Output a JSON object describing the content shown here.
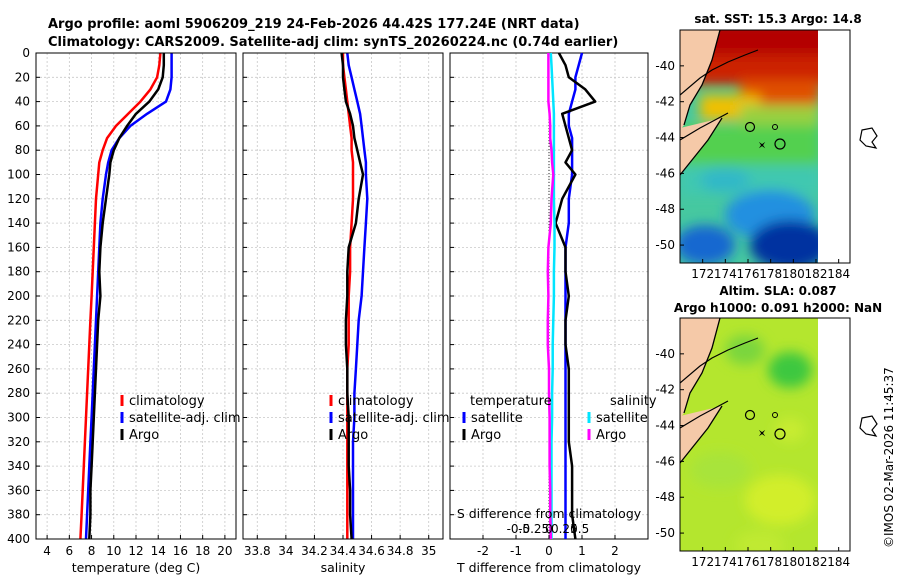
{
  "header": {
    "line1": "Argo profile: aoml 5906209_219 24-Feb-2026 44.42S 177.24E (NRT data)",
    "line2": "Climatology: CARS2009. Satellite-adj clim: synTS_20260224.nc (0.74d earlier)"
  },
  "credit": "©IMOS 02-Mar-2026 11:45:37",
  "colors": {
    "climatology": "#ff0000",
    "satellite": "#0000ff",
    "argo": "#000000",
    "cyan": "#00e5ff",
    "magenta": "#ff00ff"
  },
  "chart_data": [
    {
      "type": "line",
      "id": "temperature",
      "xlabel": "temperature (deg C)",
      "ylim": [
        0,
        400
      ],
      "xlim": [
        3,
        21
      ],
      "xticks": [
        4,
        6,
        8,
        10,
        12,
        14,
        16,
        18,
        20
      ],
      "yticks": [
        0,
        20,
        40,
        60,
        80,
        100,
        120,
        140,
        160,
        180,
        200,
        220,
        240,
        260,
        280,
        300,
        320,
        340,
        360,
        380,
        400
      ],
      "legend": [
        "climatology",
        "satellite-adj. clim",
        "Argo"
      ],
      "series": [
        {
          "name": "climatology",
          "color": "#ff0000",
          "x": [
            14.2,
            14.1,
            13.9,
            13.3,
            12.4,
            11.3,
            10.2,
            9.4,
            9.0,
            8.7,
            8.6,
            8.4,
            8.3,
            8.2,
            8.1,
            8.0,
            7.9,
            7.8,
            7.7,
            7.6,
            7.5,
            7.4,
            7.3,
            7.2,
            7.1,
            7.0
          ],
          "y": [
            0,
            10,
            20,
            30,
            40,
            50,
            60,
            70,
            80,
            90,
            100,
            120,
            140,
            160,
            180,
            200,
            220,
            240,
            260,
            280,
            300,
            320,
            340,
            360,
            380,
            400
          ]
        },
        {
          "name": "satellite-adj. clim",
          "color": "#0000ff",
          "x": [
            15.2,
            15.2,
            15.2,
            15.1,
            14.7,
            13.0,
            11.5,
            10.5,
            9.8,
            9.5,
            9.3,
            9.0,
            8.8,
            8.7,
            8.6,
            8.5,
            8.4,
            8.3,
            8.2,
            8.1,
            8.0,
            7.9,
            7.8,
            7.7,
            7.6,
            7.5
          ],
          "y": [
            0,
            10,
            20,
            30,
            40,
            50,
            60,
            70,
            80,
            90,
            100,
            120,
            140,
            160,
            180,
            200,
            220,
            240,
            260,
            280,
            300,
            320,
            340,
            360,
            380,
            400
          ]
        },
        {
          "name": "Argo",
          "color": "#000000",
          "x": [
            14.5,
            14.5,
            14.4,
            14.0,
            13.2,
            12.0,
            11.2,
            10.5,
            10.0,
            9.7,
            9.6,
            9.3,
            9.0,
            8.8,
            8.7,
            8.8,
            8.6,
            8.5,
            8.4,
            8.3,
            8.2,
            8.1,
            8.0,
            7.9,
            7.9,
            7.8
          ],
          "y": [
            0,
            10,
            20,
            30,
            40,
            50,
            60,
            70,
            80,
            90,
            100,
            120,
            140,
            160,
            180,
            200,
            220,
            240,
            260,
            280,
            300,
            320,
            340,
            360,
            380,
            400
          ]
        }
      ]
    },
    {
      "type": "line",
      "id": "salinity",
      "xlabel": "salinity",
      "ylim": [
        0,
        400
      ],
      "xlim": [
        33.7,
        35.1
      ],
      "xticks": [
        33.8,
        34,
        34.2,
        34.4,
        34.6,
        34.8,
        35
      ],
      "xticklabels": [
        "33.8",
        "34",
        "34.2",
        "34.4",
        "34.6",
        "34.8",
        "35"
      ],
      "legend": [
        "climatology",
        "satellite-adj. clim",
        "Argo"
      ],
      "series": [
        {
          "name": "climatology",
          "color": "#ff0000",
          "x": [
            34.4,
            34.4,
            34.41,
            34.42,
            34.43,
            34.44,
            34.45,
            34.46,
            34.46,
            34.47,
            34.47,
            34.47,
            34.46,
            34.45,
            34.45,
            34.44,
            34.44,
            34.44,
            34.43,
            34.43,
            34.43,
            34.43,
            34.43,
            34.43,
            34.43,
            34.43
          ],
          "y": [
            0,
            10,
            20,
            30,
            40,
            50,
            60,
            70,
            80,
            90,
            100,
            120,
            140,
            160,
            180,
            200,
            220,
            240,
            260,
            280,
            300,
            320,
            340,
            360,
            380,
            400
          ]
        },
        {
          "name": "satellite-adj. clim",
          "color": "#0000ff",
          "x": [
            34.43,
            34.44,
            34.46,
            34.48,
            34.5,
            34.52,
            34.53,
            34.54,
            34.55,
            34.56,
            34.56,
            34.57,
            34.56,
            34.55,
            34.54,
            34.53,
            34.51,
            34.5,
            34.49,
            34.48,
            34.48,
            34.47,
            34.47,
            34.47,
            34.47,
            34.47
          ],
          "y": [
            0,
            10,
            20,
            30,
            40,
            50,
            60,
            70,
            80,
            90,
            100,
            120,
            140,
            160,
            180,
            200,
            220,
            240,
            260,
            280,
            300,
            320,
            340,
            360,
            380,
            400
          ]
        },
        {
          "name": "Argo",
          "color": "#000000",
          "x": [
            34.39,
            34.4,
            34.4,
            34.41,
            34.42,
            34.45,
            34.47,
            34.48,
            34.5,
            34.52,
            34.54,
            34.51,
            34.49,
            34.44,
            34.43,
            34.43,
            34.42,
            34.42,
            34.43,
            34.43,
            34.44,
            34.44,
            34.44,
            34.45,
            34.45,
            34.46
          ],
          "y": [
            0,
            10,
            20,
            30,
            40,
            50,
            60,
            70,
            80,
            90,
            100,
            120,
            140,
            160,
            180,
            200,
            220,
            240,
            260,
            280,
            300,
            320,
            340,
            360,
            380,
            400
          ]
        }
      ]
    },
    {
      "type": "line",
      "id": "difference",
      "xlabel": "T difference from climatology",
      "xlabel_top": "S difference from climatology",
      "ylim": [
        0,
        400
      ],
      "xlim": [
        -3,
        3
      ],
      "xticks": [
        -2,
        -1,
        0,
        1,
        2
      ],
      "xticklabels": [
        "-2",
        "-1",
        "0",
        "1",
        "2"
      ],
      "sticks": [
        -0.5,
        -0.25,
        0,
        0.25,
        0.5
      ],
      "sticklabels": [
        "-0.5",
        "-0.25",
        "0",
        "0.25",
        "0.5"
      ],
      "legend_temperature_title": "temperature",
      "legend_salinity_title": "salinity",
      "legend_temperature": [
        "satellite",
        "Argo"
      ],
      "legend_salinity": [
        "satellite",
        "Argo"
      ],
      "series": [
        {
          "name": "T satellite",
          "color": "#0000ff",
          "x": [
            1.0,
            0.9,
            0.8,
            0.8,
            0.7,
            0.6,
            0.6,
            0.7,
            0.7,
            0.7,
            0.7,
            0.6,
            0.6,
            0.5,
            0.5,
            0.5,
            0.5,
            0.5,
            0.5,
            0.5,
            0.5,
            0.5,
            0.5,
            0.5,
            0.5,
            0.5
          ],
          "y": [
            0,
            10,
            20,
            30,
            40,
            50,
            60,
            70,
            80,
            90,
            100,
            120,
            140,
            160,
            180,
            200,
            220,
            240,
            260,
            280,
            300,
            320,
            340,
            360,
            380,
            400
          ]
        },
        {
          "name": "T Argo",
          "color": "#000000",
          "x": [
            0.3,
            0.5,
            0.6,
            1.1,
            1.4,
            0.4,
            0.5,
            0.6,
            0.7,
            0.5,
            0.8,
            0.4,
            0.2,
            0.5,
            0.5,
            0.6,
            0.5,
            0.5,
            0.6,
            0.6,
            0.6,
            0.6,
            0.7,
            0.7,
            0.7,
            0.8
          ],
          "y": [
            0,
            10,
            20,
            30,
            40,
            50,
            60,
            70,
            80,
            90,
            100,
            120,
            140,
            160,
            180,
            200,
            220,
            240,
            260,
            280,
            300,
            320,
            340,
            360,
            380,
            400
          ]
        },
        {
          "name": "S satellite",
          "color": "#00e5ff",
          "x": [
            0.03,
            0.04,
            0.05,
            0.06,
            0.07,
            0.08,
            0.08,
            0.08,
            0.08,
            0.08,
            0.08,
            0.08,
            0.09,
            0.09,
            0.08,
            0.08,
            0.07,
            0.06,
            0.06,
            0.05,
            0.05,
            0.04,
            0.04,
            0.04,
            0.04,
            0.04
          ],
          "y": [
            0,
            10,
            20,
            30,
            40,
            50,
            60,
            70,
            80,
            90,
            100,
            120,
            140,
            160,
            180,
            200,
            220,
            240,
            260,
            280,
            300,
            320,
            340,
            360,
            380,
            400
          ]
        },
        {
          "name": "S Argo",
          "color": "#ff00ff",
          "x": [
            -0.01,
            -0.01,
            -0.01,
            -0.01,
            -0.01,
            0.01,
            0.02,
            0.02,
            0.04,
            0.05,
            0.07,
            0.04,
            0.03,
            -0.01,
            -0.02,
            -0.01,
            -0.02,
            -0.02,
            0.0,
            0.0,
            0.01,
            0.01,
            0.01,
            0.02,
            0.02,
            0.03
          ],
          "y": [
            0,
            10,
            20,
            30,
            40,
            50,
            60,
            70,
            80,
            90,
            100,
            120,
            140,
            160,
            180,
            200,
            220,
            240,
            260,
            280,
            300,
            320,
            340,
            360,
            380,
            400
          ]
        }
      ]
    },
    {
      "type": "heatmap",
      "id": "sst-map",
      "title": "sat. SST: 15.3 Argo: 14.8",
      "xlim": [
        170,
        185
      ],
      "ylim": [
        -51,
        -38
      ],
      "xticks": [
        172,
        174,
        176,
        178,
        180,
        182,
        184
      ],
      "yticks": [
        -40,
        -42,
        -44,
        -46,
        -48,
        -50
      ],
      "yticklabels": [
        "-40",
        "-42",
        "-44",
        "-46",
        "-48",
        "-50"
      ],
      "argo_position": [
        177.24,
        -44.42
      ]
    },
    {
      "type": "heatmap",
      "id": "sla-map",
      "title_line1": "Altim. SLA: 0.087",
      "title_line2": "Argo h1000: 0.091 h2000: NaN",
      "xlim": [
        170,
        185
      ],
      "ylim": [
        -51,
        -38
      ],
      "xticks": [
        172,
        174,
        176,
        178,
        180,
        182,
        184
      ],
      "yticks": [
        -40,
        -42,
        -44,
        -46,
        -48,
        -50
      ],
      "yticklabels": [
        "-40",
        "-42",
        "-44",
        "-46",
        "-48",
        "-50"
      ],
      "argo_position": [
        177.24,
        -44.42
      ]
    }
  ]
}
